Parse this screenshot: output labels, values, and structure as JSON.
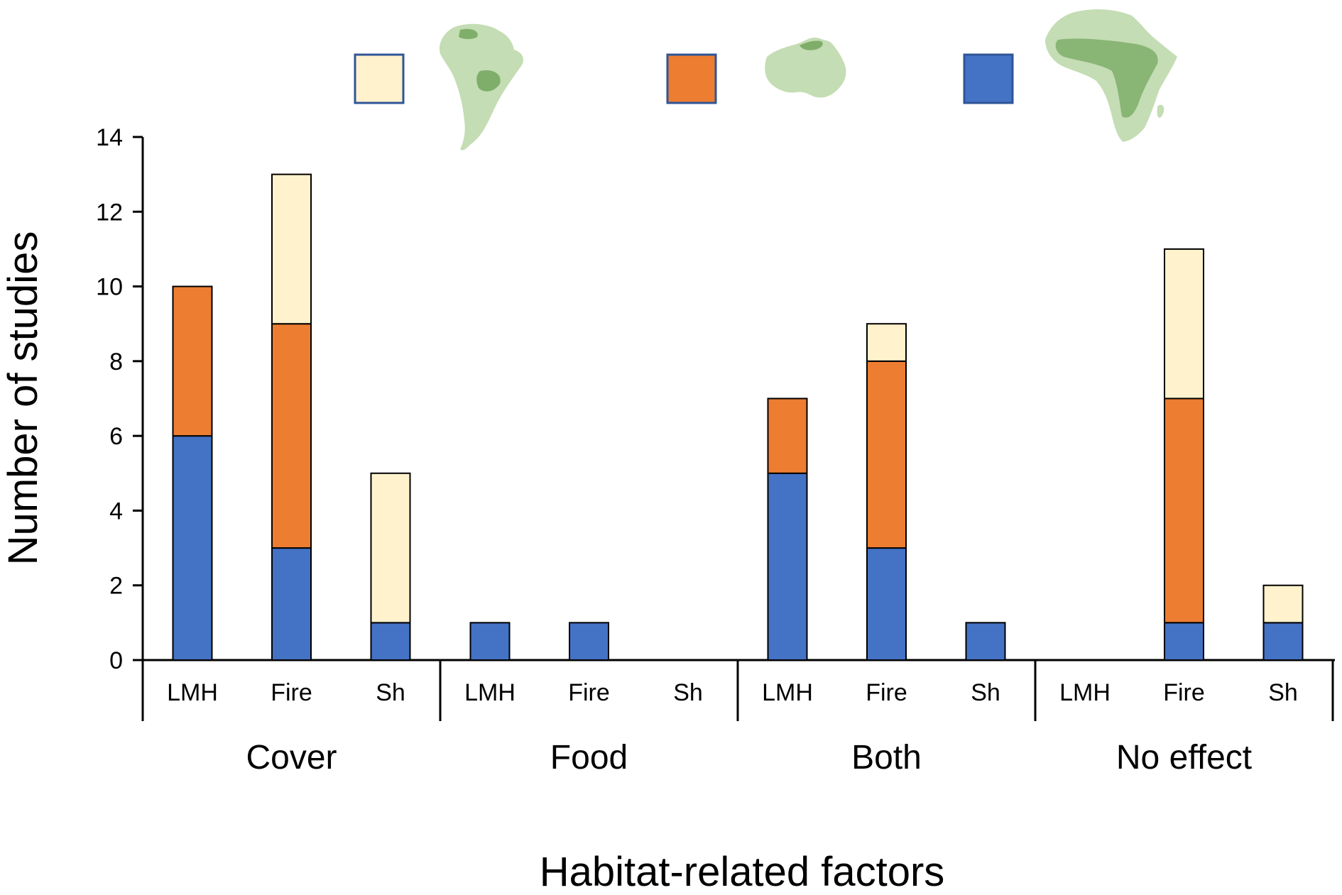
{
  "chart_data": {
    "type": "bar",
    "stacked": true,
    "title": "",
    "xlabel": "Habitat-related factors",
    "ylabel": "Number of studies",
    "ylim": [
      0,
      14
    ],
    "yticks": [
      0,
      2,
      4,
      6,
      8,
      10,
      12,
      14
    ],
    "groups": [
      "Cover",
      "Food",
      "Both",
      "No effect"
    ],
    "subcategories": [
      "LMH",
      "Fire",
      "Sh"
    ],
    "series": [
      {
        "name": "Africa",
        "color": "#4472c4",
        "legend_icon": "africa-map-icon",
        "values": [
          [
            6,
            3,
            1
          ],
          [
            1,
            1,
            0
          ],
          [
            5,
            3,
            1
          ],
          [
            0,
            1,
            1
          ]
        ]
      },
      {
        "name": "Australia",
        "color": "#ed7d31",
        "legend_icon": "australia-map-icon",
        "values": [
          [
            4,
            6,
            0
          ],
          [
            0,
            0,
            0
          ],
          [
            2,
            5,
            0
          ],
          [
            0,
            6,
            0
          ]
        ]
      },
      {
        "name": "South America",
        "color": "#fff2cc",
        "legend_icon": "south-america-map-icon",
        "values": [
          [
            0,
            4,
            4
          ],
          [
            0,
            0,
            0
          ],
          [
            0,
            1,
            0
          ],
          [
            0,
            4,
            1
          ]
        ]
      }
    ],
    "legend_position": "top",
    "grid": false
  }
}
